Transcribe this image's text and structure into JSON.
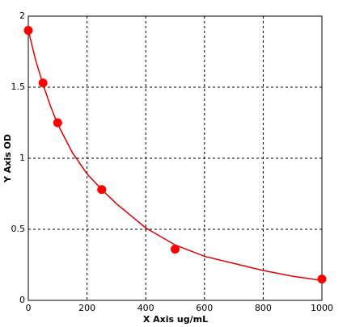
{
  "chart_data": {
    "type": "scatter",
    "x_label": "X Axis ug/mL",
    "y_label": "Y Axis OD",
    "xlim": [
      0,
      1000
    ],
    "ylim": [
      0,
      2
    ],
    "xticks": [
      0,
      200,
      400,
      600,
      800,
      1000
    ],
    "yticks": [
      0,
      0.5,
      1,
      1.5,
      2
    ],
    "grid": true,
    "series": [
      {
        "type": "scatter",
        "color": "#ff0000",
        "x": [
          0,
          50,
          100,
          250,
          500,
          1000
        ],
        "values": [
          1.9,
          1.53,
          1.25,
          0.78,
          0.36,
          0.15
        ]
      },
      {
        "type": "line",
        "color": "#e00000",
        "x": [
          0,
          25,
          50,
          75,
          100,
          150,
          200,
          250,
          300,
          400,
          500,
          600,
          700,
          800,
          900,
          1000
        ],
        "values": [
          1.9,
          1.69,
          1.52,
          1.37,
          1.24,
          1.04,
          0.89,
          0.78,
          0.68,
          0.51,
          0.39,
          0.31,
          0.26,
          0.21,
          0.17,
          0.14
        ]
      }
    ]
  }
}
